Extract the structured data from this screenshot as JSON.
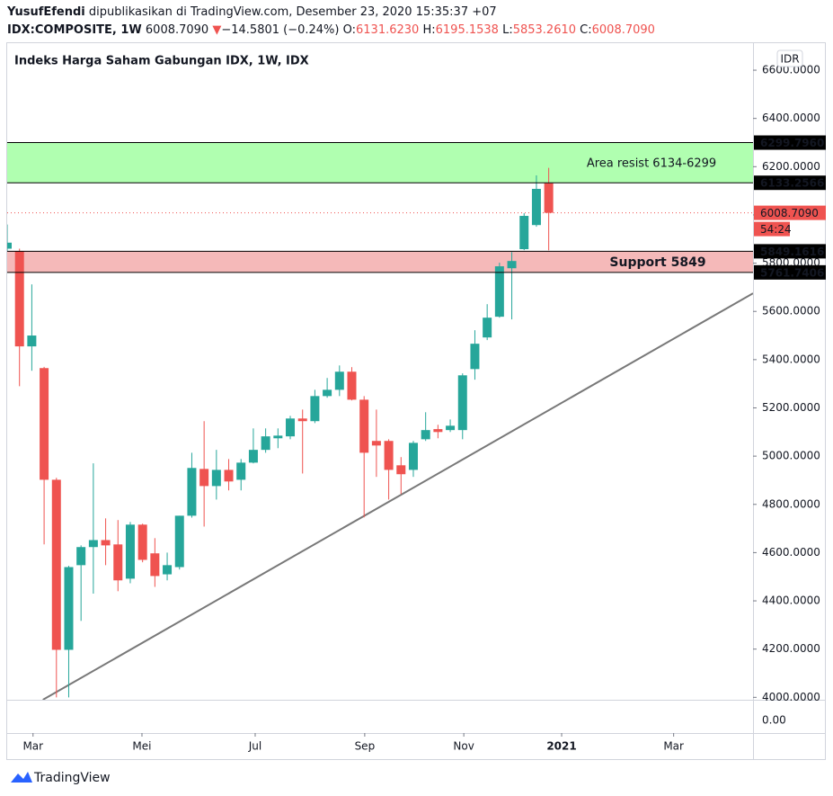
{
  "header": {
    "author": "YusufEfendi",
    "published": "dipublikasikan di TradingView.com, Desember 23, 2020 15:35:37 +07",
    "symbol": "IDX:COMPOSITE, 1W",
    "price": "6008.7090",
    "arrow": "▼",
    "change": "−14.5801 (−0.24%)",
    "ohlc": [
      {
        "key": "O:",
        "value": "6131.6230"
      },
      {
        "key": "H:",
        "value": "6195.1538"
      },
      {
        "key": "L:",
        "value": "5853.2610"
      },
      {
        "key": "C:",
        "value": "6008.7090"
      }
    ]
  },
  "footer": "TradingView",
  "chart_data": {
    "type": "candlestick",
    "title": "Indeks Harga Saham Gabungan IDX, 1W, IDX",
    "currency": "IDR",
    "up_color": "#26a69a",
    "down_color": "#ef5350",
    "grid": false,
    "xlim": [
      0,
      60.6
    ],
    "ylim": [
      3990,
      6712
    ],
    "xticks": [
      {
        "value": 2.1,
        "label": "Mar"
      },
      {
        "value": 10.95,
        "label": "Mei"
      },
      {
        "value": 20.15,
        "label": "Jul"
      },
      {
        "value": 29.05,
        "label": "Sep"
      },
      {
        "value": 37.1,
        "label": "Nov"
      },
      {
        "value": 45.05,
        "label": "2021"
      },
      {
        "value": 54.15,
        "label": "Mar"
      }
    ],
    "yticks": [
      {
        "value": 4000,
        "label": "4000.0000"
      },
      {
        "value": 4200,
        "label": "4200.0000"
      },
      {
        "value": 4400,
        "label": "4400.0000"
      },
      {
        "value": 4600,
        "label": "4600.0000"
      },
      {
        "value": 4800,
        "label": "4800.0000"
      },
      {
        "value": 5000,
        "label": "5000.0000"
      },
      {
        "value": 5200,
        "label": "5200.0000"
      },
      {
        "value": 5400,
        "label": "5400.0000"
      },
      {
        "value": 5600,
        "label": "5600.0000"
      },
      {
        "value": 5800,
        "label": "5800.0000"
      },
      {
        "value": 6000,
        "label": "6000.0000"
      },
      {
        "value": 6200,
        "label": "6200.0000"
      },
      {
        "value": 6400,
        "label": "6400.0000"
      },
      {
        "value": 6600,
        "label": "6600.0000"
      }
    ],
    "lower_pane_label": "0.00",
    "open": [
      5860,
      5850,
      5455,
      5365,
      4902,
      4197,
      4548,
      4623,
      4652,
      4634,
      4492,
      4716,
      4597,
      4510,
      4540,
      4753,
      4947,
      4876,
      4943,
      4902,
      4973,
      5026,
      5074,
      5082,
      5156,
      5145,
      5249,
      5275,
      5350,
      5234,
      5063,
      5063,
      4962,
      4943,
      5070,
      5112,
      5108,
      5108,
      5361,
      5492,
      5578,
      5779,
      5858,
      5958,
      6131.623
    ],
    "high": [
      5960,
      5860,
      5712,
      5370,
      4910,
      4545,
      4630,
      4970,
      4742,
      4735,
      4727,
      4720,
      4660,
      4600,
      4753,
      5014,
      5145,
      5026,
      4988,
      4988,
      5115,
      5115,
      5115,
      5167,
      5193,
      5275,
      5324,
      5376,
      5369,
      5249,
      5193,
      5070,
      4996,
      5063,
      5182,
      5130,
      5152,
      5343,
      5522,
      5630,
      5802,
      5846,
      6007,
      6164,
      6195.1538
    ],
    "low": [
      5850,
      5290,
      5354,
      4634,
      4000,
      4000,
      4317,
      4430,
      4548,
      4440,
      4473,
      4560,
      4458,
      4485,
      4530,
      4745,
      4708,
      4820,
      4858,
      4858,
      4970,
      5014,
      5033,
      5070,
      4928,
      5137,
      5242,
      5249,
      5231,
      4746,
      4914,
      4820,
      4843,
      4914,
      5063,
      5074,
      5100,
      5070,
      5317,
      5481,
      5574,
      5567,
      5854,
      5951,
      5853.261
    ],
    "close": [
      5885,
      5455,
      5500,
      4902,
      4197,
      4540,
      4623,
      4652,
      4630,
      4485,
      4716,
      4570,
      4503,
      4548,
      4753,
      4951,
      4876,
      4943,
      4895,
      4973,
      5026,
      5082,
      5085,
      5156,
      5145,
      5249,
      5275,
      5350,
      5234,
      5014,
      5044,
      4943,
      4925,
      5055,
      5108,
      5100,
      5126,
      5335,
      5466,
      5574,
      5787,
      5809,
      5996,
      6108,
      6008.709
    ],
    "zones": [
      {
        "text": "Area resist 6134-6299",
        "color": "rgba(80,255,80,0.45)",
        "top": {
          "value": 6299.796,
          "label": "6299.7960"
        },
        "bottom": {
          "value": 6133.2566,
          "label": "6133.2566"
        }
      },
      {
        "text": "Support 5849",
        "color": "rgba(230,80,80,0.4)",
        "top": {
          "value": 5849.1616,
          "label": "5849.1616"
        },
        "bottom": {
          "value": 5761.7406,
          "label": "5761.7406"
        }
      }
    ],
    "last_price": {
      "value": 6008.709,
      "label": "6008.7090"
    },
    "countdown": "54:24",
    "trendline": {
      "x": [
        2.9,
        60.6
      ],
      "y": [
        3990,
        5675
      ],
      "color": "#787878"
    }
  }
}
